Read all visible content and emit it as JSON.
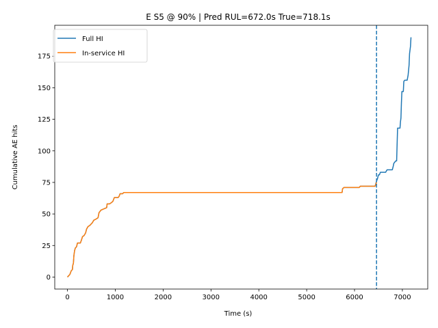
{
  "chart_data": {
    "type": "line",
    "title": "E S5 @ 90% | Pred RUL=672.0s  True=718.1s",
    "xlabel": "Time (s)",
    "ylabel": "Cumulative AE hits",
    "xlim": [
      -265,
      7530
    ],
    "ylim": [
      -9.5,
      199.5
    ],
    "xticks": [
      0,
      1000,
      2000,
      3000,
      4000,
      5000,
      6000,
      7000
    ],
    "yticks": [
      0,
      25,
      50,
      75,
      100,
      125,
      150,
      175
    ],
    "grid": false,
    "legend_position": "top-left",
    "vline": {
      "x": 6460,
      "style": "dashed",
      "color": "#1f77b4"
    },
    "series": [
      {
        "name": "Full HI",
        "color": "#1f77b4",
        "points": [
          [
            0,
            0
          ],
          [
            50,
            2
          ],
          [
            80,
            5
          ],
          [
            105,
            6
          ],
          [
            110,
            9
          ],
          [
            125,
            11
          ],
          [
            135,
            17
          ],
          [
            150,
            21
          ],
          [
            165,
            23
          ],
          [
            190,
            24
          ],
          [
            210,
            27
          ],
          [
            240,
            27
          ],
          [
            270,
            27
          ],
          [
            290,
            29
          ],
          [
            315,
            32
          ],
          [
            350,
            33
          ],
          [
            380,
            35
          ],
          [
            400,
            38
          ],
          [
            430,
            40
          ],
          [
            470,
            41
          ],
          [
            520,
            43
          ],
          [
            550,
            45
          ],
          [
            600,
            46
          ],
          [
            640,
            47
          ],
          [
            660,
            51
          ],
          [
            680,
            52
          ],
          [
            700,
            53
          ],
          [
            760,
            54
          ],
          [
            820,
            55
          ],
          [
            830,
            58
          ],
          [
            880,
            58
          ],
          [
            920,
            59
          ],
          [
            950,
            60
          ],
          [
            980,
            63
          ],
          [
            1060,
            63
          ],
          [
            1080,
            64
          ],
          [
            1100,
            66
          ],
          [
            1150,
            66
          ],
          [
            1180,
            67
          ],
          [
            1250,
            67
          ],
          [
            5740,
            67
          ],
          [
            5750,
            70
          ],
          [
            5780,
            71
          ],
          [
            6100,
            71
          ],
          [
            6120,
            72
          ],
          [
            6430,
            72
          ],
          [
            6460,
            76
          ],
          [
            6480,
            78
          ],
          [
            6500,
            81
          ],
          [
            6520,
            81
          ],
          [
            6540,
            83
          ],
          [
            6650,
            83
          ],
          [
            6680,
            85
          ],
          [
            6790,
            85
          ],
          [
            6810,
            88
          ],
          [
            6820,
            90
          ],
          [
            6840,
            91
          ],
          [
            6860,
            92
          ],
          [
            6880,
            92
          ],
          [
            6890,
            105
          ],
          [
            6900,
            118
          ],
          [
            6950,
            118
          ],
          [
            6960,
            123
          ],
          [
            6970,
            126
          ],
          [
            6980,
            138
          ],
          [
            6990,
            147
          ],
          [
            7020,
            147
          ],
          [
            7030,
            155
          ],
          [
            7050,
            156
          ],
          [
            7100,
            156
          ],
          [
            7120,
            160
          ],
          [
            7140,
            168
          ],
          [
            7150,
            177
          ],
          [
            7170,
            183
          ],
          [
            7180,
            190
          ]
        ]
      },
      {
        "name": "In-service HI",
        "color": "#ff7f0e",
        "points": [
          [
            0,
            0
          ],
          [
            50,
            2
          ],
          [
            80,
            5
          ],
          [
            105,
            6
          ],
          [
            110,
            9
          ],
          [
            125,
            11
          ],
          [
            135,
            17
          ],
          [
            150,
            21
          ],
          [
            165,
            23
          ],
          [
            190,
            24
          ],
          [
            210,
            27
          ],
          [
            240,
            27
          ],
          [
            270,
            27
          ],
          [
            290,
            29
          ],
          [
            315,
            32
          ],
          [
            350,
            33
          ],
          [
            380,
            35
          ],
          [
            400,
            38
          ],
          [
            430,
            40
          ],
          [
            470,
            41
          ],
          [
            520,
            43
          ],
          [
            550,
            45
          ],
          [
            600,
            46
          ],
          [
            640,
            47
          ],
          [
            660,
            51
          ],
          [
            680,
            52
          ],
          [
            700,
            53
          ],
          [
            760,
            54
          ],
          [
            820,
            55
          ],
          [
            830,
            58
          ],
          [
            880,
            58
          ],
          [
            920,
            59
          ],
          [
            950,
            60
          ],
          [
            980,
            63
          ],
          [
            1060,
            63
          ],
          [
            1080,
            64
          ],
          [
            1100,
            66
          ],
          [
            1150,
            66
          ],
          [
            1180,
            67
          ],
          [
            1250,
            67
          ],
          [
            5740,
            67
          ],
          [
            5750,
            70
          ],
          [
            5780,
            71
          ],
          [
            6100,
            71
          ],
          [
            6120,
            72
          ],
          [
            6430,
            72
          ],
          [
            6460,
            75
          ]
        ]
      }
    ]
  }
}
